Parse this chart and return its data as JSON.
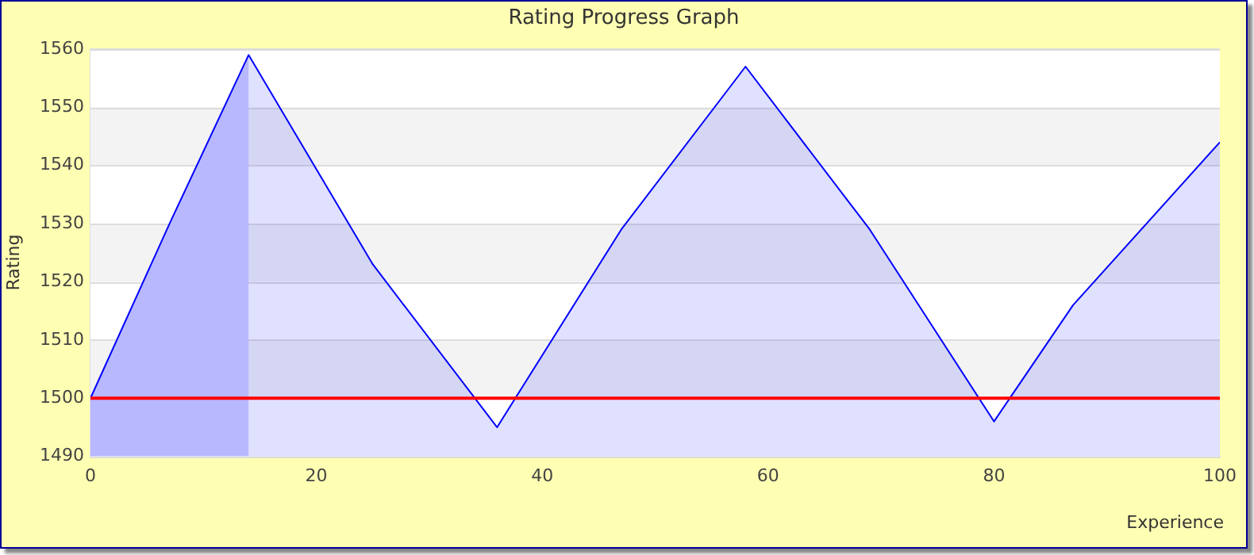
{
  "chart_data": {
    "type": "area",
    "title": "Rating Progress Graph",
    "xlabel": "Experience",
    "ylabel": "Rating",
    "x": [
      0,
      7,
      14,
      25,
      36,
      47,
      58,
      69,
      80,
      87,
      100
    ],
    "series": [
      {
        "color": "#0000ff",
        "values": [
          1500,
          1530,
          1559,
          1523,
          1495,
          1529,
          1557,
          1529,
          1496,
          1516,
          1544
        ]
      }
    ],
    "xlim": [
      0,
      100
    ],
    "xticks": [
      0,
      20,
      40,
      60,
      80,
      100
    ],
    "ylim": [
      1490,
      1560
    ],
    "yticks": [
      1490,
      1500,
      1510,
      1520,
      1530,
      1540,
      1550,
      1560
    ],
    "grid": "y",
    "legend": false,
    "ref_lines": [
      {
        "axis": "y",
        "value": 1500,
        "color": "#ff0000"
      }
    ],
    "bands": [
      {
        "axis": "x",
        "from": 0,
        "to": 14,
        "color": "#d2d2ff"
      }
    ]
  }
}
